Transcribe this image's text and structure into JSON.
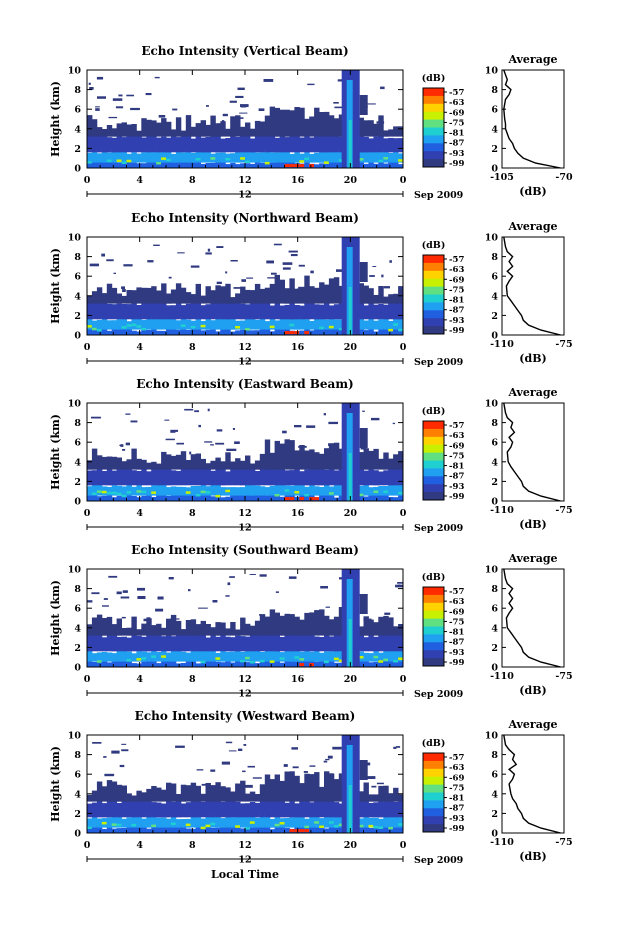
{
  "chart_data": [
    {
      "type": "heatmap",
      "title": "Echo Intensity (Vertical Beam)",
      "xlabel": "",
      "ylabel": "Height (km)",
      "x_ticks": [
        "0",
        "4",
        "8",
        "12",
        "16",
        "20",
        "0"
      ],
      "x_range": [
        0,
        24
      ],
      "y_ticks": [
        "0",
        "2",
        "4",
        "6",
        "8",
        "10"
      ],
      "y_range": [
        0,
        10
      ],
      "date_marker": "12",
      "date_label": "Sep 2009",
      "colorbar": {
        "unit": "(dB)",
        "ticks": [
          "-57",
          "-63",
          "-69",
          "-75",
          "-81",
          "-87",
          "-93",
          "-99"
        ]
      },
      "average": {
        "title": "Average",
        "xlabel": "(dB)",
        "x_ticks": [
          "-105",
          "-70"
        ],
        "x_range": [
          -105,
          -70
        ],
        "y_ticks": [
          "0",
          "2",
          "4",
          "6",
          "8",
          "10"
        ],
        "profile": [
          [
            0,
            -72
          ],
          [
            0.5,
            -86
          ],
          [
            1,
            -93
          ],
          [
            1.5,
            -96
          ],
          [
            2,
            -98
          ],
          [
            2.5,
            -99
          ],
          [
            3,
            -101
          ],
          [
            3.5,
            -102
          ],
          [
            4,
            -103
          ],
          [
            4.5,
            -103
          ],
          [
            5,
            -103.5
          ],
          [
            6,
            -104
          ],
          [
            7,
            -103
          ],
          [
            7.5,
            -101
          ],
          [
            8,
            -100
          ],
          [
            8.5,
            -103
          ],
          [
            9,
            -102
          ],
          [
            10,
            -104
          ]
        ]
      }
    },
    {
      "type": "heatmap",
      "title": "Echo Intensity (Northward Beam)",
      "xlabel": "",
      "ylabel": "Height (km)",
      "x_ticks": [
        "0",
        "4",
        "8",
        "12",
        "16",
        "20",
        "0"
      ],
      "x_range": [
        0,
        24
      ],
      "y_ticks": [
        "0",
        "2",
        "4",
        "6",
        "8",
        "10"
      ],
      "y_range": [
        0,
        10
      ],
      "date_marker": "12",
      "date_label": "Sep 2009",
      "colorbar": {
        "unit": "(dB)",
        "ticks": [
          "-57",
          "-63",
          "-69",
          "-75",
          "-81",
          "-87",
          "-93",
          "-99"
        ]
      },
      "average": {
        "title": "Average",
        "xlabel": "(dB)",
        "x_ticks": [
          "-110",
          "-75"
        ],
        "x_range": [
          -110,
          -75
        ],
        "y_ticks": [
          "0",
          "2",
          "4",
          "6",
          "8",
          "10"
        ],
        "profile": [
          [
            0,
            -77
          ],
          [
            0.5,
            -88
          ],
          [
            1,
            -95
          ],
          [
            1.5,
            -98
          ],
          [
            2,
            -99
          ],
          [
            2.5,
            -101
          ],
          [
            3,
            -103
          ],
          [
            3.5,
            -105
          ],
          [
            4,
            -107
          ],
          [
            5,
            -107.5
          ],
          [
            5.5,
            -106
          ],
          [
            6,
            -104
          ],
          [
            6.5,
            -107
          ],
          [
            7,
            -104
          ],
          [
            7.5,
            -106
          ],
          [
            8,
            -104
          ],
          [
            8.5,
            -107
          ],
          [
            9,
            -108
          ],
          [
            10,
            -109
          ]
        ]
      }
    },
    {
      "type": "heatmap",
      "title": "Echo Intensity (Eastward Beam)",
      "xlabel": "",
      "ylabel": "Height (km)",
      "x_ticks": [
        "0",
        "4",
        "8",
        "12",
        "16",
        "20",
        "0"
      ],
      "x_range": [
        0,
        24
      ],
      "y_ticks": [
        "0",
        "2",
        "4",
        "6",
        "8",
        "10"
      ],
      "y_range": [
        0,
        10
      ],
      "date_marker": "12",
      "date_label": "Sep 2009",
      "colorbar": {
        "unit": "(dB)",
        "ticks": [
          "-57",
          "-63",
          "-69",
          "-75",
          "-81",
          "-87",
          "-93",
          "-99"
        ]
      },
      "average": {
        "title": "Average",
        "xlabel": "(dB)",
        "x_ticks": [
          "-110",
          "-75"
        ],
        "x_range": [
          -110,
          -75
        ],
        "y_ticks": [
          "0",
          "2",
          "4",
          "6",
          "8",
          "10"
        ],
        "profile": [
          [
            0,
            -77
          ],
          [
            0.5,
            -88
          ],
          [
            1,
            -95
          ],
          [
            1.5,
            -98
          ],
          [
            2,
            -99
          ],
          [
            2.5,
            -101
          ],
          [
            3,
            -103
          ],
          [
            3.5,
            -105
          ],
          [
            4,
            -106.5
          ],
          [
            5,
            -107
          ],
          [
            5.5,
            -105
          ],
          [
            6,
            -104
          ],
          [
            6.5,
            -106
          ],
          [
            7,
            -103
          ],
          [
            7.5,
            -105
          ],
          [
            8,
            -104
          ],
          [
            8.5,
            -107
          ],
          [
            9,
            -108
          ],
          [
            10,
            -109
          ]
        ]
      }
    },
    {
      "type": "heatmap",
      "title": "Echo Intensity (Southward Beam)",
      "xlabel": "",
      "ylabel": "Height (km)",
      "x_ticks": [
        "0",
        "4",
        "8",
        "12",
        "16",
        "20",
        "0"
      ],
      "x_range": [
        0,
        24
      ],
      "y_ticks": [
        "0",
        "2",
        "4",
        "6",
        "8",
        "10"
      ],
      "y_range": [
        0,
        10
      ],
      "date_marker": "12",
      "date_label": "Sep 2009",
      "colorbar": {
        "unit": "(dB)",
        "ticks": [
          "-57",
          "-63",
          "-69",
          "-75",
          "-81",
          "-87",
          "-93",
          "-99"
        ]
      },
      "average": {
        "title": "Average",
        "xlabel": "(dB)",
        "x_ticks": [
          "-110",
          "-75"
        ],
        "x_range": [
          -110,
          -75
        ],
        "y_ticks": [
          "0",
          "2",
          "4",
          "6",
          "8",
          "10"
        ],
        "profile": [
          [
            0,
            -77
          ],
          [
            0.5,
            -88
          ],
          [
            1,
            -95
          ],
          [
            1.5,
            -98
          ],
          [
            2,
            -99
          ],
          [
            2.5,
            -101
          ],
          [
            3,
            -103
          ],
          [
            3.5,
            -105
          ],
          [
            4,
            -107
          ],
          [
            5,
            -107.5
          ],
          [
            5.5,
            -106
          ],
          [
            6,
            -104
          ],
          [
            6.5,
            -106
          ],
          [
            7,
            -104
          ],
          [
            7.5,
            -106
          ],
          [
            8,
            -104
          ],
          [
            8.5,
            -107
          ],
          [
            9,
            -108
          ],
          [
            10,
            -109
          ]
        ]
      }
    },
    {
      "type": "heatmap",
      "title": "Echo Intensity (Westward Beam)",
      "xlabel": "Local Time",
      "ylabel": "Height (km)",
      "x_ticks": [
        "0",
        "4",
        "8",
        "12",
        "16",
        "20",
        "0"
      ],
      "x_range": [
        0,
        24
      ],
      "y_ticks": [
        "0",
        "2",
        "4",
        "6",
        "8",
        "10"
      ],
      "y_range": [
        0,
        10
      ],
      "date_marker": "12",
      "date_label": "Sep 2009",
      "colorbar": {
        "unit": "(dB)",
        "ticks": [
          "-57",
          "-63",
          "-69",
          "-75",
          "-81",
          "-87",
          "-93",
          "-99"
        ]
      },
      "average": {
        "title": "Average",
        "xlabel": "(dB)",
        "x_ticks": [
          "-110",
          "-75"
        ],
        "x_range": [
          -110,
          -75
        ],
        "y_ticks": [
          "0",
          "2",
          "4",
          "6",
          "8",
          "10"
        ],
        "profile": [
          [
            0,
            -77
          ],
          [
            0.5,
            -88
          ],
          [
            1,
            -95
          ],
          [
            1.5,
            -98
          ],
          [
            2,
            -99
          ],
          [
            2.5,
            -101
          ],
          [
            3,
            -102
          ],
          [
            3.5,
            -104
          ],
          [
            4,
            -105
          ],
          [
            5,
            -106
          ],
          [
            5.5,
            -104
          ],
          [
            6,
            -103
          ],
          [
            6.5,
            -106
          ],
          [
            7,
            -102
          ],
          [
            7.5,
            -104
          ],
          [
            8,
            -103
          ],
          [
            8.5,
            -106
          ],
          [
            9,
            -108
          ],
          [
            10,
            -109
          ]
        ]
      }
    }
  ],
  "colors": {
    "colorbar": [
      "#ff2a00",
      "#ff7f00",
      "#ffd200",
      "#c8f000",
      "#60e080",
      "#20d0d0",
      "#20a0f0",
      "#2060e0",
      "#3040b0",
      "#303a80"
    ]
  }
}
